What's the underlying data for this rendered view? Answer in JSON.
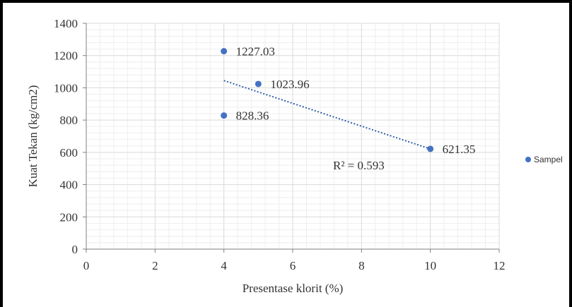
{
  "chart_data": {
    "type": "scatter",
    "title": "",
    "xlabel": "Presentase klorit (%)",
    "ylabel": "Kuat Tekan (kg/cm2)",
    "xlim": [
      0,
      12
    ],
    "ylim": [
      0,
      1400
    ],
    "x_ticks": [
      0,
      2,
      4,
      6,
      8,
      10,
      12
    ],
    "y_ticks": [
      0,
      200,
      400,
      600,
      800,
      1000,
      1200,
      1400
    ],
    "grid": true,
    "legend_position": "right",
    "series": [
      {
        "name": "Sampel",
        "color": "#4472C4",
        "points": [
          {
            "x": 4,
            "y": 1227.03,
            "label": "1227.03"
          },
          {
            "x": 5,
            "y": 1023.96,
            "label": "1023.96"
          },
          {
            "x": 4,
            "y": 828.36,
            "label": "828.36"
          },
          {
            "x": 10,
            "y": 621.35,
            "label": "621.35"
          }
        ]
      }
    ],
    "trendline": {
      "type": "linear",
      "style": "dotted",
      "color": "#2E5EA8",
      "x_range": [
        4,
        10
      ],
      "y_start": 1045,
      "y_end": 621,
      "annotation": "R² = 0.593"
    }
  }
}
